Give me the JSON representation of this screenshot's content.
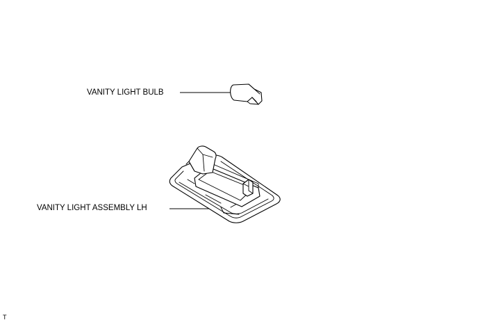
{
  "parts": {
    "bulb_label": "VANITY LIGHT BULB",
    "assembly_label": "VANITY LIGHT ASSEMBLY LH"
  },
  "corner_code": "T"
}
